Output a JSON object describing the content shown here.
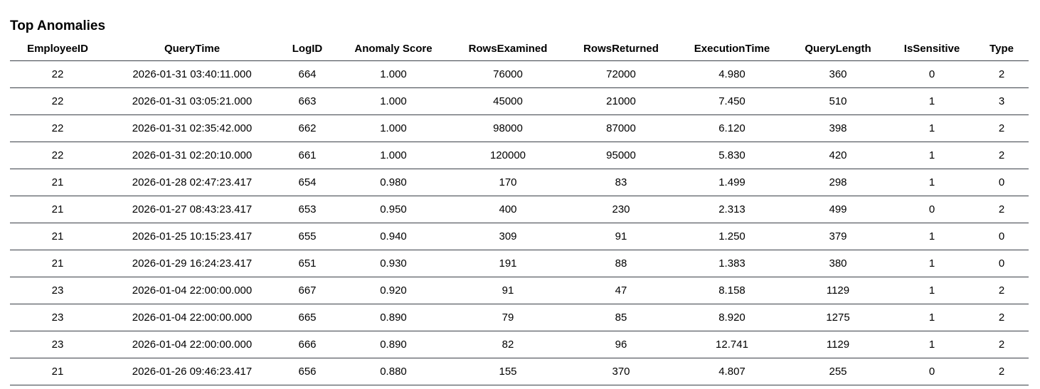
{
  "title": "Top Anomalies",
  "columns": [
    "EmployeeID",
    "QueryTime",
    "LogID",
    "Anomaly Score",
    "RowsExamined",
    "RowsReturned",
    "ExecutionTime",
    "QueryLength",
    "IsSensitive",
    "Type"
  ],
  "rows": [
    [
      "22",
      "2026-01-31 03:40:11.000",
      "664",
      "1.000",
      "76000",
      "72000",
      "4.980",
      "360",
      "0",
      "2"
    ],
    [
      "22",
      "2026-01-31 03:05:21.000",
      "663",
      "1.000",
      "45000",
      "21000",
      "7.450",
      "510",
      "1",
      "3"
    ],
    [
      "22",
      "2026-01-31 02:35:42.000",
      "662",
      "1.000",
      "98000",
      "87000",
      "6.120",
      "398",
      "1",
      "2"
    ],
    [
      "22",
      "2026-01-31 02:20:10.000",
      "661",
      "1.000",
      "120000",
      "95000",
      "5.830",
      "420",
      "1",
      "2"
    ],
    [
      "21",
      "2026-01-28 02:47:23.417",
      "654",
      "0.980",
      "170",
      "83",
      "1.499",
      "298",
      "1",
      "0"
    ],
    [
      "21",
      "2026-01-27 08:43:23.417",
      "653",
      "0.950",
      "400",
      "230",
      "2.313",
      "499",
      "0",
      "2"
    ],
    [
      "21",
      "2026-01-25 10:15:23.417",
      "655",
      "0.940",
      "309",
      "91",
      "1.250",
      "379",
      "1",
      "0"
    ],
    [
      "21",
      "2026-01-29 16:24:23.417",
      "651",
      "0.930",
      "191",
      "88",
      "1.383",
      "380",
      "1",
      "0"
    ],
    [
      "23",
      "2026-01-04 22:00:00.000",
      "667",
      "0.920",
      "91",
      "47",
      "8.158",
      "1129",
      "1",
      "2"
    ],
    [
      "23",
      "2026-01-04 22:00:00.000",
      "665",
      "0.890",
      "79",
      "85",
      "8.920",
      "1275",
      "1",
      "2"
    ],
    [
      "23",
      "2026-01-04 22:00:00.000",
      "666",
      "0.890",
      "82",
      "96",
      "12.741",
      "1129",
      "1",
      "2"
    ],
    [
      "21",
      "2026-01-26 09:46:23.417",
      "656",
      "0.880",
      "155",
      "370",
      "4.807",
      "255",
      "0",
      "2"
    ]
  ]
}
